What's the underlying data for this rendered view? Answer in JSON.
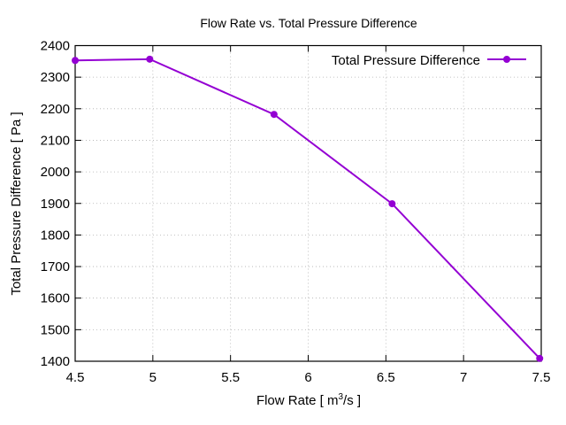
{
  "chart_data": {
    "type": "line",
    "title": "Flow Rate vs. Total Pressure Difference",
    "xlabel_parts": [
      "Flow Rate [ m",
      "3",
      "/s ]"
    ],
    "xlabel": "Flow Rate [ m3/s ]",
    "ylabel": "Total Pressure Difference [ Pa ]",
    "xlim": [
      4.5,
      7.5
    ],
    "ylim": [
      1400,
      2400
    ],
    "xticks": [
      4.5,
      5,
      5.5,
      6,
      6.5,
      7,
      7.5
    ],
    "xtick_labels": [
      "4.5",
      "5",
      "5.5",
      "6",
      "6.5",
      "7",
      "7.5"
    ],
    "yticks": [
      1400,
      1500,
      1600,
      1700,
      1800,
      1900,
      2000,
      2100,
      2200,
      2300,
      2400
    ],
    "ytick_labels": [
      "1400",
      "1500",
      "1600",
      "1700",
      "1800",
      "1900",
      "2000",
      "2100",
      "2200",
      "2300",
      "2400"
    ],
    "grid": true,
    "legend_position": "top-right",
    "series": [
      {
        "name": "Total Pressure Difference",
        "color": "#9400d3",
        "x": [
          4.5,
          4.98,
          5.78,
          6.54,
          7.49
        ],
        "y": [
          2353,
          2357,
          2182,
          1899,
          1409
        ]
      }
    ]
  }
}
